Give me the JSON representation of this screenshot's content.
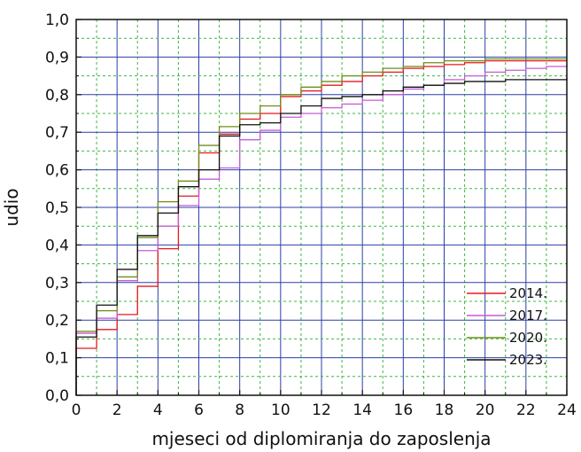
{
  "chart_data": {
    "type": "line",
    "step": true,
    "title": "",
    "xlabel": "mjeseci od diplomiranja do zaposlenja",
    "ylabel": "udio",
    "xlim": [
      0,
      24
    ],
    "ylim": [
      0,
      1.0
    ],
    "x_ticks": [
      0,
      2,
      4,
      6,
      8,
      10,
      12,
      14,
      16,
      18,
      20,
      22,
      24
    ],
    "x_tick_labels": [
      "0",
      "2",
      "4",
      "6",
      "8",
      "10",
      "12",
      "14",
      "16",
      "18",
      "20",
      "22",
      "24"
    ],
    "y_ticks": [
      0,
      0.1,
      0.2,
      0.3,
      0.4,
      0.5,
      0.6,
      0.7,
      0.8,
      0.9,
      1.0
    ],
    "y_tick_labels": [
      "0,0",
      "0,1",
      "0,2",
      "0,3",
      "0,4",
      "0,5",
      "0,6",
      "0,7",
      "0,8",
      "0,9",
      "1,0"
    ],
    "grid": true,
    "grid_major_color": "#2b3fa8",
    "grid_minor_color": "#3cb83c",
    "legend_position": "bottom-right",
    "series": [
      {
        "name": "2014.",
        "color": "#e8191f",
        "x": [
          0,
          1,
          2,
          3,
          4,
          5,
          6,
          7,
          8,
          9,
          10,
          11,
          12,
          13,
          14,
          15,
          16,
          17,
          18,
          19,
          20,
          21,
          22,
          23,
          24
        ],
        "y": [
          0.125,
          0.175,
          0.215,
          0.29,
          0.39,
          0.53,
          0.645,
          0.695,
          0.735,
          0.75,
          0.795,
          0.81,
          0.825,
          0.835,
          0.85,
          0.86,
          0.87,
          0.875,
          0.88,
          0.885,
          0.89,
          0.89,
          0.89,
          0.89,
          0.89
        ]
      },
      {
        "name": "2017.",
        "color": "#c85ad8",
        "x": [
          0,
          1,
          2,
          3,
          4,
          5,
          6,
          7,
          8,
          9,
          10,
          11,
          12,
          13,
          14,
          15,
          16,
          17,
          18,
          19,
          20,
          21,
          22,
          23,
          24
        ],
        "y": [
          0.165,
          0.205,
          0.305,
          0.385,
          0.45,
          0.505,
          0.575,
          0.605,
          0.68,
          0.705,
          0.74,
          0.75,
          0.765,
          0.775,
          0.785,
          0.8,
          0.815,
          0.825,
          0.84,
          0.85,
          0.86,
          0.865,
          0.87,
          0.875,
          0.88
        ]
      },
      {
        "name": "2020.",
        "color": "#6f8d1a",
        "x": [
          0,
          1,
          2,
          3,
          4,
          5,
          6,
          7,
          8,
          9,
          10,
          11,
          12,
          13,
          14,
          15,
          16,
          17,
          18,
          19,
          20,
          21,
          22,
          23,
          24
        ],
        "y": [
          0.17,
          0.225,
          0.315,
          0.42,
          0.515,
          0.57,
          0.665,
          0.715,
          0.75,
          0.77,
          0.8,
          0.82,
          0.835,
          0.85,
          0.86,
          0.87,
          0.875,
          0.885,
          0.89,
          0.89,
          0.895,
          0.895,
          0.895,
          0.895,
          0.895
        ]
      },
      {
        "name": "2023.",
        "color": "#111111",
        "x": [
          0,
          1,
          2,
          3,
          4,
          5,
          6,
          7,
          8,
          9,
          10,
          11,
          12,
          13,
          14,
          15,
          16,
          17,
          18,
          19,
          20,
          21,
          22,
          23,
          24
        ],
        "y": [
          0.155,
          0.24,
          0.335,
          0.425,
          0.485,
          0.555,
          0.6,
          0.69,
          0.72,
          0.725,
          0.75,
          0.77,
          0.79,
          0.795,
          0.8,
          0.81,
          0.82,
          0.825,
          0.83,
          0.835,
          0.835,
          0.84,
          0.84,
          0.84,
          0.845
        ]
      }
    ]
  }
}
